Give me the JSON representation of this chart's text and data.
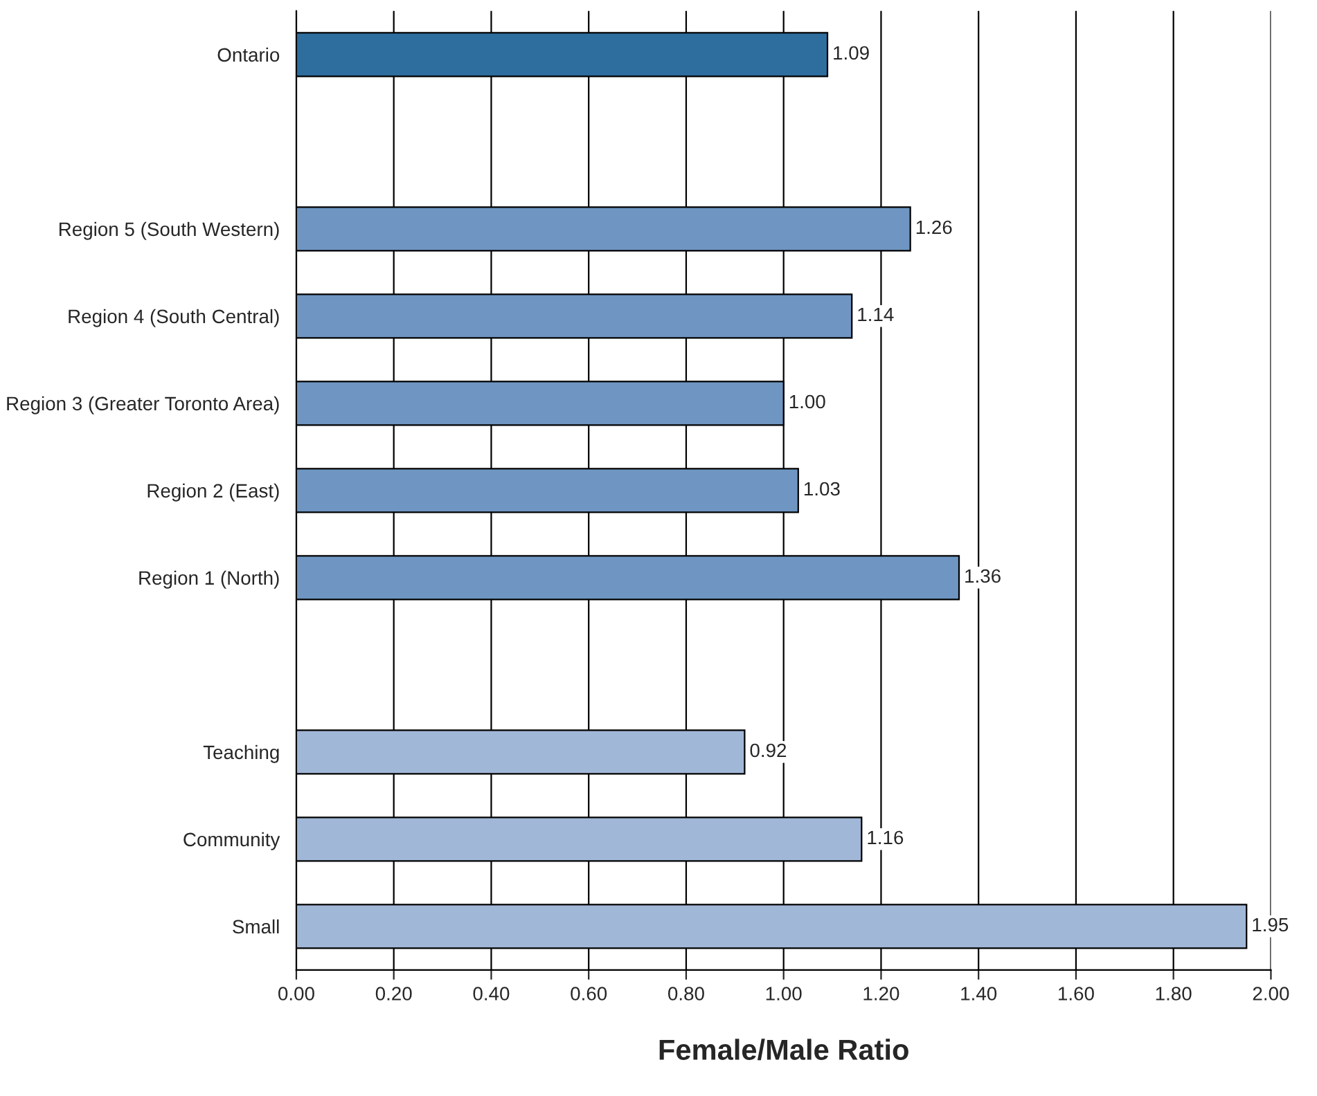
{
  "chart_data": {
    "type": "bar",
    "orientation": "horizontal",
    "xlabel": "Female/Male Ratio",
    "categories": [
      "Ontario",
      null,
      "Region 5 (South Western)",
      "Region 4 (South Central)",
      "Region 3 (Greater Toronto Area)",
      "Region 2 (East)",
      "Region 1 (North)",
      null,
      "Teaching",
      "Community",
      "Small"
    ],
    "values": [
      1.09,
      null,
      1.26,
      1.14,
      1.0,
      1.03,
      1.36,
      null,
      0.92,
      1.16,
      1.95
    ],
    "colors": [
      "#2e6e9e",
      null,
      "#6f96c2",
      "#6f96c2",
      "#6f96c2",
      "#6f96c2",
      "#6f96c2",
      null,
      "#a1b7d7",
      "#a1b7d7",
      "#a1b7d7"
    ],
    "value_labels": [
      "1.09",
      null,
      "1.26",
      "1.14",
      "1.00",
      "1.03",
      "1.36",
      null,
      "0.92",
      "1.16",
      "1.95"
    ],
    "xlim": [
      0,
      2
    ],
    "xticks": [
      {
        "value": 0,
        "label": "0.00"
      },
      {
        "value": 0.2,
        "label": "0.20"
      },
      {
        "value": 0.4,
        "label": "0.40"
      },
      {
        "value": 0.6,
        "label": "0.60"
      },
      {
        "value": 0.8,
        "label": "0.80"
      },
      {
        "value": 1.0,
        "label": "1.00"
      },
      {
        "value": 1.2,
        "label": "1.20"
      },
      {
        "value": 1.4,
        "label": "1.40"
      },
      {
        "value": 1.6,
        "label": "1.60"
      },
      {
        "value": 1.8,
        "label": "1.80"
      },
      {
        "value": 2.0,
        "label": "2.00"
      }
    ],
    "grid": "x"
  }
}
